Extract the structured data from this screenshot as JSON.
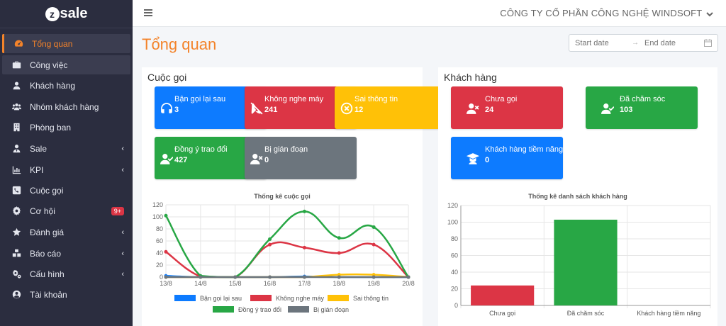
{
  "app": {
    "logo_letter": "z",
    "logo_text": "sale"
  },
  "header": {
    "company": "CÔNG TY CỔ PHẦN CÔNG NGHỆ WINDSOFT"
  },
  "sidebar": {
    "items": [
      {
        "label": "Tổng quan",
        "icon": "dashboard-icon"
      },
      {
        "label": "Công việc",
        "icon": "briefcase-icon"
      },
      {
        "label": "Khách hàng",
        "icon": "user-icon"
      },
      {
        "label": "Nhóm khách hàng",
        "icon": "users-icon"
      },
      {
        "label": "Phòng ban",
        "icon": "building-icon"
      },
      {
        "label": "Sale",
        "icon": "user-tie-icon"
      },
      {
        "label": "KPI",
        "icon": "chart-icon"
      },
      {
        "label": "Cuộc gọi",
        "icon": "phone-icon"
      },
      {
        "label": "Cơ hội",
        "icon": "gear-icon",
        "badge": "9+"
      },
      {
        "label": "Đánh giá",
        "icon": "star-icon"
      },
      {
        "label": "Báo cáo",
        "icon": "boxes-icon"
      },
      {
        "label": "Cấu hình",
        "icon": "cogs-icon"
      },
      {
        "label": "Tài khoản",
        "icon": "account-icon"
      }
    ]
  },
  "page": {
    "title": "Tổng quan"
  },
  "daterange": {
    "start_placeholder": "Start date",
    "end_placeholder": "End date",
    "arrow": "→"
  },
  "calls": {
    "title": "Cuộc gọi",
    "tiles": [
      {
        "label": "Bận gọi lại sau",
        "value": "3",
        "color": "#0d7bff",
        "icon": "headset-icon"
      },
      {
        "label": "Không nghe máy",
        "value": "241",
        "color": "#dc3545",
        "icon": "phone-slash-icon"
      },
      {
        "label": "Sai thông tin",
        "value": "12",
        "color": "#ffc107",
        "icon": "times-circle-icon"
      },
      {
        "label": "Đồng ý trao đổi",
        "value": "427",
        "color": "#28a745",
        "icon": "user-check-icon"
      },
      {
        "label": "Bị gián đoạn",
        "value": "0",
        "color": "#6c757d",
        "icon": "user-times-icon"
      }
    ]
  },
  "customers": {
    "title": "Khách hàng",
    "tiles": [
      {
        "label": "Chưa gọi",
        "value": "24",
        "color": "#dc3545",
        "icon": "user-times-icon"
      },
      {
        "label": "Đã chăm sóc",
        "value": "103",
        "color": "#28a745",
        "icon": "user-check-icon"
      },
      {
        "label": "Khách hàng tiềm năng",
        "value": "0",
        "color": "#0d7bff",
        "icon": "graduate-icon"
      }
    ]
  },
  "chart_data": [
    {
      "type": "line",
      "title": "Thống kê cuộc gọi",
      "categories": [
        "13/8",
        "14/8",
        "15/8",
        "16/8",
        "17/8",
        "18/8",
        "19/8",
        "20/8"
      ],
      "ylim": [
        0,
        120
      ],
      "yticks": [
        0,
        20,
        40,
        60,
        80,
        100,
        120
      ],
      "grid": true,
      "legend": "bottom",
      "series": [
        {
          "name": "Bận gọi lại sau",
          "color": "#0d7bff",
          "values": [
            2,
            0,
            0,
            0,
            1,
            0,
            0,
            0
          ]
        },
        {
          "name": "Không nghe máy",
          "color": "#dc3545",
          "values": [
            42,
            1,
            0,
            54,
            49,
            40,
            54,
            0
          ]
        },
        {
          "name": "Sai thông tin",
          "color": "#ffc107",
          "values": [
            0,
            0,
            0,
            0,
            0,
            4,
            4,
            0
          ]
        },
        {
          "name": "Đồng ý trao đổi",
          "color": "#28a745",
          "values": [
            102,
            2,
            0,
            63,
            109,
            65,
            83,
            0
          ]
        },
        {
          "name": "Bị gián đoạn",
          "color": "#6c757d",
          "values": [
            0,
            0,
            0,
            0,
            0,
            0,
            0,
            0
          ]
        }
      ]
    },
    {
      "type": "bar",
      "title": "Thống kê danh sách khách hàng",
      "categories": [
        "Chưa gọi",
        "Đã chăm sóc",
        "Khách hàng tiềm năng"
      ],
      "values": [
        24,
        103,
        0
      ],
      "colors": [
        "#dc3545",
        "#28a745",
        "#0d7bff"
      ],
      "ylim": [
        0,
        120
      ],
      "yticks": [
        0,
        20,
        40,
        60,
        80,
        100,
        120
      ],
      "grid": true
    }
  ]
}
